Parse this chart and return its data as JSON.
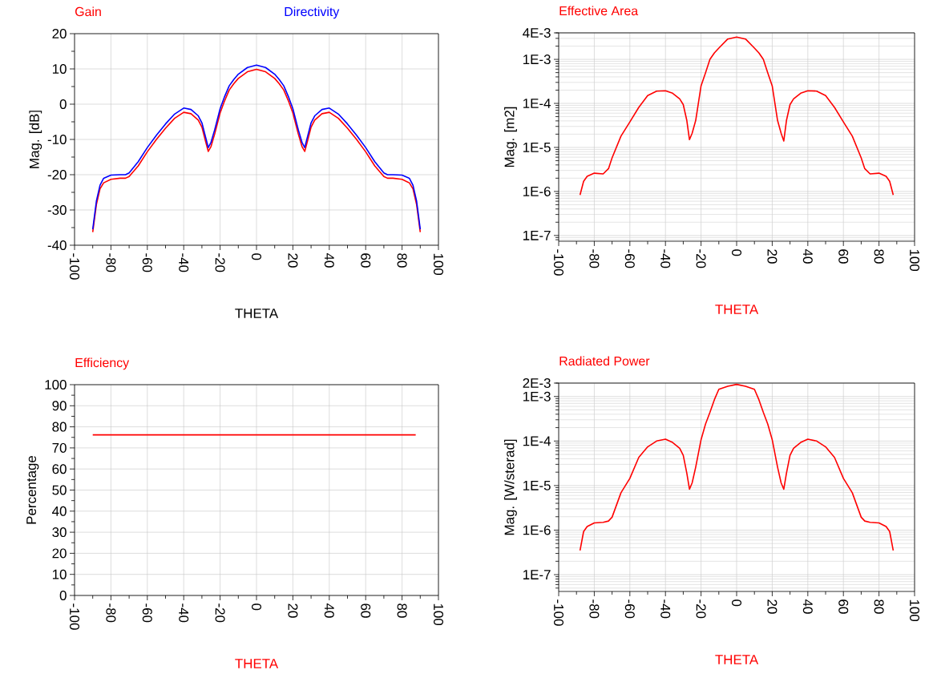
{
  "chart_data": [
    {
      "type": "line",
      "xlabel": "THETA",
      "ylabel": "Mag. [dB]",
      "legend": "top left",
      "grid": true,
      "x": [
        -90,
        -88,
        -86,
        -84,
        -80,
        -75,
        -72,
        -70,
        -65,
        -60,
        -55,
        -50,
        -45,
        -40,
        -36,
        -32,
        -30,
        -28,
        -26.5,
        -25,
        -23,
        -20,
        -17.5,
        -15,
        -12.5,
        -10,
        -5,
        0,
        5,
        10,
        12.5,
        15,
        17.5,
        20,
        23,
        25,
        26.5,
        28,
        30,
        32,
        36,
        40,
        45,
        50,
        55,
        60,
        65,
        70,
        72,
        75,
        80,
        84,
        86,
        88,
        90
      ],
      "xlim": [
        -100,
        100
      ],
      "xticks": [
        -100,
        -80,
        -60,
        -40,
        -20,
        0,
        20,
        40,
        60,
        80,
        100
      ],
      "ylim": [
        -40,
        20
      ],
      "yticks": [
        -40,
        -30,
        -20,
        -10,
        0,
        10,
        20
      ],
      "series": [
        {
          "name": "Gain",
          "color": "#ff0000",
          "values": [
            -36.3,
            -28.5,
            -24,
            -22.3,
            -21.3,
            -21,
            -21,
            -20.5,
            -17.5,
            -13.5,
            -10,
            -6.8,
            -4,
            -2.3,
            -2.7,
            -4.5,
            -6.5,
            -10.5,
            -13.4,
            -12,
            -8.5,
            -2.5,
            1,
            4,
            5.8,
            7.3,
            9.2,
            9.9,
            9.2,
            7.3,
            5.8,
            4,
            1,
            -2.5,
            -8.5,
            -12,
            -13.4,
            -10.5,
            -6.5,
            -4.5,
            -2.7,
            -2.3,
            -4,
            -6.8,
            -10,
            -13.5,
            -17.5,
            -20.5,
            -21,
            -21,
            -21.3,
            -22.3,
            -24,
            -28.5,
            -36.3
          ]
        },
        {
          "name": "Directivity",
          "color": "#0000ff",
          "values": [
            -35.5,
            -27.5,
            -23,
            -21,
            -20.1,
            -20,
            -20,
            -19.5,
            -16.3,
            -12.3,
            -8.8,
            -5.6,
            -2.8,
            -1.1,
            -1.5,
            -3.3,
            -5.3,
            -9.3,
            -12.3,
            -10.8,
            -7.3,
            -1.3,
            2.2,
            5.2,
            7,
            8.5,
            10.4,
            11.1,
            10.4,
            8.5,
            7,
            5.2,
            2.2,
            -1.3,
            -7.3,
            -10.8,
            -12.3,
            -9.3,
            -5.3,
            -3.3,
            -1.5,
            -1.1,
            -2.8,
            -5.6,
            -8.8,
            -12.3,
            -16.3,
            -19.5,
            -20,
            -20,
            -20.1,
            -21,
            -23,
            -27.5,
            -35.5
          ]
        }
      ]
    },
    {
      "type": "line",
      "xlabel": "THETA",
      "ylabel": "Mag. [m2]",
      "legend": "top left",
      "grid": true,
      "log": "y",
      "xlim": [
        -100,
        100
      ],
      "xticks": [
        -100,
        -80,
        -60,
        -40,
        -20,
        0,
        20,
        40,
        60,
        80,
        100
      ],
      "ylim": [
        7.4e-08,
        0.004
      ],
      "yticks": [
        {
          "value": 1e-07,
          "label": "1E-7"
        },
        {
          "value": 1e-06,
          "label": "1E-6"
        },
        {
          "value": 1e-05,
          "label": "1E-5"
        },
        {
          "value": 0.0001,
          "label": "1E-4"
        },
        {
          "value": 0.001,
          "label": "1E-3"
        },
        {
          "value": 0.004,
          "label": "4E-3"
        }
      ],
      "series": [
        {
          "name": "Effective Area",
          "color": "#ff0000",
          "x": [
            -88,
            -86,
            -84,
            -80,
            -75,
            -72,
            -70,
            -65,
            -60,
            -55,
            -50,
            -45,
            -40,
            -36,
            -32,
            -30,
            -28,
            -26.5,
            -25,
            -23,
            -20,
            -17.5,
            -15,
            -12.5,
            -10,
            -5,
            0,
            5,
            10,
            12.5,
            15,
            17.5,
            20,
            23,
            25,
            26.5,
            28,
            30,
            32,
            36,
            40,
            45,
            50,
            55,
            60,
            65,
            70,
            72,
            75,
            80,
            84,
            86,
            88
          ],
          "values": [
            8.3e-07,
            1.7e-06,
            2.2e-06,
            2.6e-06,
            2.5e-06,
            3.3e-06,
            5.8e-06,
            1.8e-05,
            3.8e-05,
            8.1e-05,
            0.00015,
            0.00019,
            0.000194,
            0.00017,
            0.000127,
            9.4e-05,
            4.1e-05,
            1.5e-05,
            2.1e-05,
            4.1e-05,
            0.00025,
            0.00049,
            0.001,
            0.0014,
            0.0018,
            0.0029,
            0.0032,
            0.0029,
            0.0018,
            0.0014,
            0.001,
            0.00049,
            0.00025,
            4.1e-05,
            2.1e-05,
            1.4e-05,
            4.1e-05,
            9.4e-05,
            0.000127,
            0.00017,
            0.000194,
            0.00019,
            0.00015,
            8.1e-05,
            3.8e-05,
            1.8e-05,
            5.8e-06,
            3.3e-06,
            2.5e-06,
            2.6e-06,
            2.2e-06,
            1.7e-06,
            8.3e-07
          ]
        }
      ]
    },
    {
      "type": "line",
      "xlabel": "THETA",
      "ylabel": "Percentage",
      "legend": "top left",
      "grid": true,
      "x": [
        -90,
        -60,
        -30,
        0,
        30,
        60,
        87.5
      ],
      "xlim": [
        -100,
        100
      ],
      "xticks": [
        -100,
        -80,
        -60,
        -40,
        -20,
        0,
        20,
        40,
        60,
        80,
        100
      ],
      "ylim": [
        0,
        100
      ],
      "yticks": [
        0,
        10,
        20,
        30,
        40,
        50,
        60,
        70,
        80,
        90,
        100
      ],
      "series": [
        {
          "name": "Efficiency",
          "color": "#ff0000",
          "values": [
            76.2,
            76.2,
            76.2,
            76.2,
            76.2,
            76.2,
            76.2
          ]
        }
      ]
    },
    {
      "type": "line",
      "xlabel": "THETA",
      "ylabel": "Mag. [W/sterad]",
      "legend": "top left",
      "grid": true,
      "log": "y",
      "xlim": [
        -100,
        100
      ],
      "xticks": [
        -100,
        -80,
        -60,
        -40,
        -20,
        0,
        20,
        40,
        60,
        80,
        100
      ],
      "ylim": [
        4.2e-08,
        0.002
      ],
      "yticks": [
        {
          "value": 1e-07,
          "label": "1E-7"
        },
        {
          "value": 1e-06,
          "label": "1E-6"
        },
        {
          "value": 1e-05,
          "label": "1E-5"
        },
        {
          "value": 0.0001,
          "label": "1E-4"
        },
        {
          "value": 0.001,
          "label": "1E-3"
        },
        {
          "value": 0.002,
          "label": "2E-3"
        }
      ],
      "series": [
        {
          "name": "Radiated Power",
          "color": "#ff0000",
          "x": [
            -88,
            -86,
            -84,
            -80,
            -75,
            -72,
            -70,
            -65,
            -60,
            -55,
            -50,
            -45,
            -40,
            -36,
            -32,
            -30,
            -28,
            -26.5,
            -25,
            -23,
            -20,
            -17.5,
            -15,
            -12.5,
            -10,
            -5,
            0,
            5,
            10,
            12.5,
            15,
            17.5,
            20,
            23,
            25,
            26.5,
            28,
            30,
            32,
            36,
            40,
            45,
            50,
            55,
            60,
            65,
            70,
            72,
            75,
            80,
            84,
            86,
            88
          ],
          "values": [
            3.5e-07,
            9.3e-07,
            1.2e-06,
            1.45e-06,
            1.5e-06,
            1.6e-06,
            1.95e-06,
            6.9e-06,
            1.45e-05,
            4.3e-05,
            7.4e-05,
            0.0001,
            0.00011,
            9.3e-05,
            6.9e-05,
            4.8e-05,
            1.9e-05,
            8.3e-06,
            1.15e-05,
            2.6e-05,
            0.000107,
            0.00024,
            0.00044,
            0.00085,
            0.00145,
            0.0017,
            0.00187,
            0.0017,
            0.00145,
            0.00085,
            0.00044,
            0.00024,
            0.000107,
            2.6e-05,
            1.15e-05,
            8.3e-06,
            1.9e-05,
            4.8e-05,
            6.9e-05,
            9.3e-05,
            0.00011,
            0.0001,
            7.4e-05,
            4.3e-05,
            1.45e-05,
            6.9e-06,
            1.95e-06,
            1.6e-06,
            1.5e-06,
            1.45e-06,
            1.2e-06,
            9.3e-07,
            3.5e-07
          ]
        }
      ]
    }
  ]
}
